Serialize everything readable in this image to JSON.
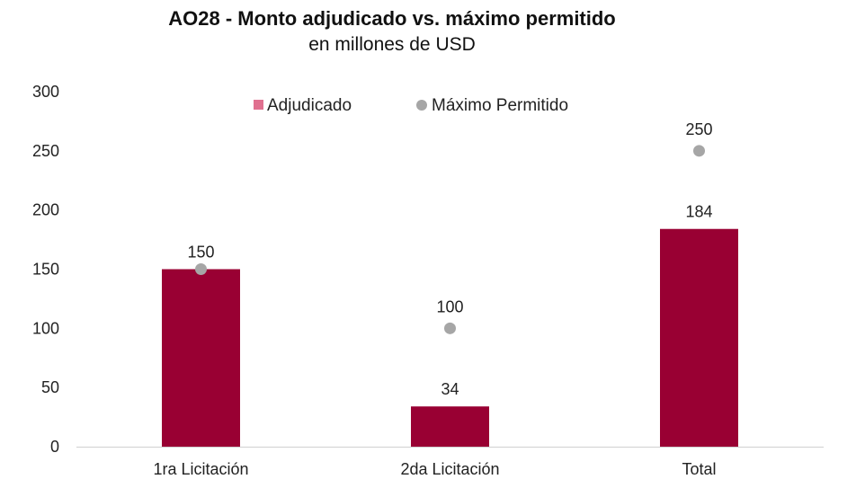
{
  "chart_data": {
    "type": "bar",
    "title": "AO28 - Monto adjudicado vs. máximo permitido",
    "subtitle": "en millones de USD",
    "categories": [
      "1ra Licitación",
      "2da Licitación",
      "Total"
    ],
    "series": [
      {
        "name": "Adjudicado",
        "kind": "bar",
        "color": "#990033",
        "values": [
          150,
          34,
          184
        ]
      },
      {
        "name": "Máximo Permitido",
        "kind": "scatter",
        "color": "#a6a6a6",
        "values": [
          150,
          100,
          250
        ]
      }
    ],
    "ylim": [
      0,
      300
    ],
    "yticks": [
      0,
      50,
      100,
      150,
      200,
      250,
      300
    ],
    "xlabel": "",
    "ylabel": "",
    "legend_position": "top-center",
    "grid": false
  }
}
